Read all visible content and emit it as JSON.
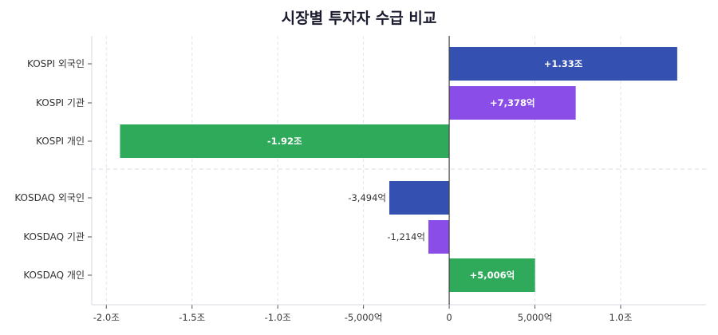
{
  "chart_data": {
    "type": "bar",
    "orientation": "horizontal",
    "title": "시장별 투자자 수급 비교",
    "unit": "억",
    "categories": [
      "KOSPI 외국인",
      "KOSPI 기관",
      "KOSPI 개인",
      "KOSDAQ 외국인",
      "KOSDAQ 기관",
      "KOSDAQ 개인"
    ],
    "values": [
      13300,
      7378,
      -19200,
      -3494,
      -1214,
      5006
    ],
    "data_labels": [
      "+1.33조",
      "+7,378억",
      "-1.92조",
      "-3,494억",
      "-1,214억",
      "+5,006억"
    ],
    "colors": [
      "#3451b2",
      "#8b4de8",
      "#2eaa5a",
      "#3451b2",
      "#8b4de8",
      "#2eaa5a"
    ],
    "xlim": [
      -20850,
      14980
    ],
    "xticks": [
      -20000,
      -15000,
      -10000,
      -5000,
      0,
      5000,
      10000
    ],
    "xtick_labels": [
      "-2.0조",
      "-1.5조",
      "-1.0조",
      "-5,000억",
      "0",
      "5,000억",
      "1.0조"
    ],
    "grid": "vertical dashed",
    "group_separator": "between KOSPI and KOSDAQ"
  }
}
